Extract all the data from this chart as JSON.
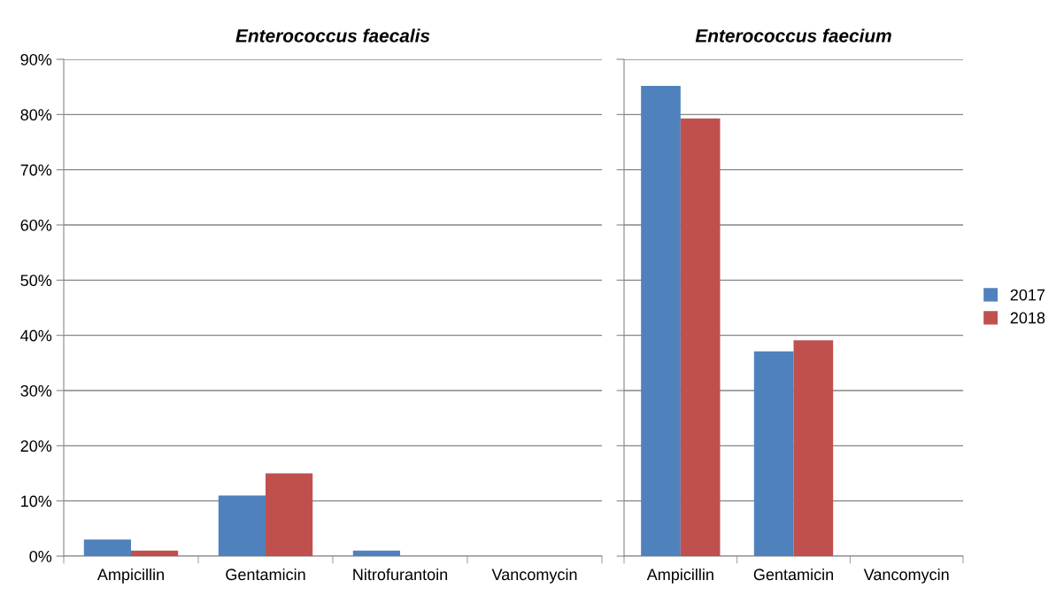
{
  "chart_data": [
    {
      "type": "bar",
      "title": "Enterococcus faecalis",
      "categories": [
        "Ampicillin",
        "Gentamicin",
        "Nitrofurantoin",
        "Vancomycin"
      ],
      "series": [
        {
          "name": "2017",
          "color": "#4f81bd",
          "values": [
            3,
            11,
            1,
            0
          ]
        },
        {
          "name": "2018",
          "color": "#c0504d",
          "values": [
            1,
            15,
            0,
            0
          ]
        }
      ],
      "ylim": [
        0,
        90
      ],
      "yticks": [
        {
          "value": 0,
          "label": "0%"
        },
        {
          "value": 10,
          "label": "10%"
        },
        {
          "value": 20,
          "label": "20%"
        },
        {
          "value": 30,
          "label": "30%"
        },
        {
          "value": 40,
          "label": "40%"
        },
        {
          "value": 50,
          "label": "50%"
        },
        {
          "value": 60,
          "label": "60%"
        },
        {
          "value": 70,
          "label": "70%"
        },
        {
          "value": 80,
          "label": "80%"
        },
        {
          "value": 90,
          "label": "90%"
        }
      ],
      "grid": "y",
      "legend": "right"
    },
    {
      "type": "bar",
      "title": "Enterococcus faecium",
      "categories": [
        "Ampicillin",
        "Gentamicin",
        "Vancomycin"
      ],
      "series": [
        {
          "name": "2017",
          "color": "#4f81bd",
          "values": [
            85.2,
            37.1,
            0
          ]
        },
        {
          "name": "2018",
          "color": "#c0504d",
          "values": [
            79.3,
            39.1,
            0
          ]
        }
      ],
      "ylim": [
        0,
        90
      ],
      "yticks": [
        {
          "value": 0,
          "label": null
        },
        {
          "value": 10,
          "label": null
        },
        {
          "value": 20,
          "label": null
        },
        {
          "value": 30,
          "label": null
        },
        {
          "value": 40,
          "label": null
        },
        {
          "value": 50,
          "label": null
        },
        {
          "value": 60,
          "label": null
        },
        {
          "value": 70,
          "label": null
        },
        {
          "value": 80,
          "label": null
        },
        {
          "value": 90,
          "label": null
        }
      ],
      "tick_labels": "x",
      "grid": "y",
      "legend": "right"
    }
  ]
}
